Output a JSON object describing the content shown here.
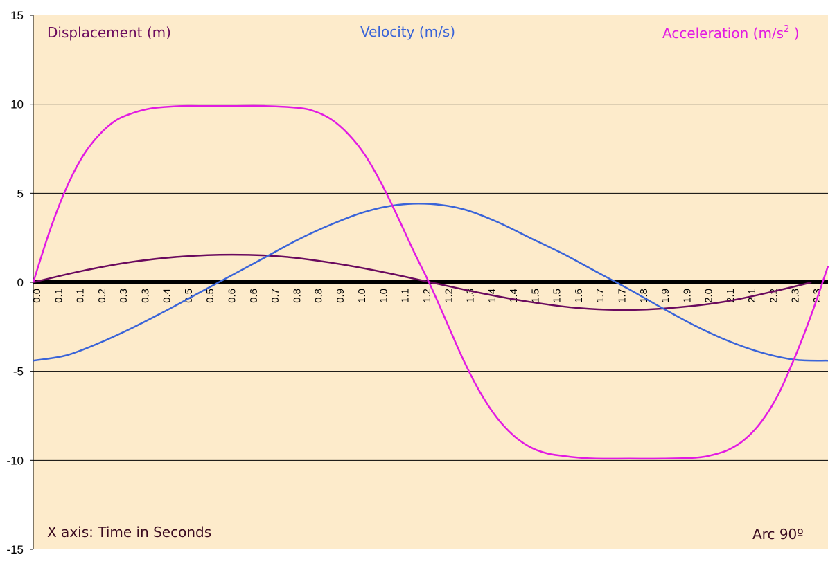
{
  "chart_data": {
    "type": "line",
    "xlabel": "X axis: Time in Seconds",
    "annotation": "Arc  90º",
    "ylim": [
      -15,
      15
    ],
    "yticks": [
      15,
      10,
      5,
      0,
      -5,
      -10,
      -15
    ],
    "xlim": [
      0,
      2.4
    ],
    "x_tick_labels": [
      "0.0",
      "0.1",
      "0.1",
      "0.2",
      "0.3",
      "0.3",
      "0.4",
      "0.5",
      "0.5",
      "0.6",
      "0.6",
      "0.7",
      "0.8",
      "0.8",
      "0.9",
      "1.0",
      "1.0",
      "1.1",
      "1.2",
      "1.2",
      "1.3",
      "1.4",
      "1.4",
      "1.5",
      "1.5",
      "1.6",
      "1.7",
      "1.7",
      "1.8",
      "1.9",
      "1.9",
      "2.0",
      "2.1",
      "2.1",
      "2.2",
      "2.3",
      "2.3"
    ],
    "colors": {
      "background": "#fdebcb",
      "grid": "#000000",
      "displacement": "#6a0a5e",
      "velocity": "#3a64d8",
      "acceleration": "#e21ae2"
    },
    "series": [
      {
        "name": "Displacement (m)",
        "x": [
          0.0,
          0.15,
          0.3,
          0.45,
          0.6,
          0.75,
          0.9,
          1.05,
          1.2,
          1.35,
          1.5,
          1.65,
          1.8,
          1.95,
          2.1,
          2.25,
          2.35
        ],
        "y": [
          0.0,
          0.65,
          1.15,
          1.45,
          1.55,
          1.45,
          1.1,
          0.6,
          0.0,
          -0.6,
          -1.1,
          -1.45,
          -1.55,
          -1.4,
          -1.05,
          -0.45,
          0.0
        ]
      },
      {
        "name": "Velocity (m/s)",
        "x": [
          0.0,
          0.1,
          0.2,
          0.3,
          0.4,
          0.5,
          0.6,
          0.7,
          0.8,
          0.9,
          1.0,
          1.1,
          1.2,
          1.3,
          1.4,
          1.5,
          1.6,
          1.7,
          1.8,
          1.9,
          2.0,
          2.1,
          2.2,
          2.3,
          2.4
        ],
        "y": [
          -4.4,
          -4.1,
          -3.4,
          -2.55,
          -1.6,
          -0.6,
          0.4,
          1.4,
          2.4,
          3.25,
          3.95,
          4.35,
          4.4,
          4.1,
          3.4,
          2.5,
          1.6,
          0.6,
          -0.4,
          -1.45,
          -2.45,
          -3.3,
          -3.95,
          -4.35,
          -4.4
        ]
      },
      {
        "name": "Acceleration (m/s",
        "name_sup": "2",
        "name_end": " )",
        "x": [
          0.0,
          0.05,
          0.1,
          0.15,
          0.2,
          0.25,
          0.3,
          0.35,
          0.4,
          0.45,
          0.5,
          0.6,
          0.7,
          0.8,
          0.85,
          0.9,
          0.95,
          1.0,
          1.05,
          1.1,
          1.15,
          1.2,
          1.25,
          1.3,
          1.35,
          1.4,
          1.45,
          1.5,
          1.55,
          1.6,
          1.65,
          1.7,
          1.8,
          1.9,
          2.0,
          2.05,
          2.1,
          2.15,
          2.2,
          2.25,
          2.3,
          2.35,
          2.4
        ],
        "y": [
          0.0,
          2.9,
          5.3,
          7.1,
          8.3,
          9.1,
          9.5,
          9.75,
          9.85,
          9.9,
          9.9,
          9.9,
          9.9,
          9.8,
          9.6,
          9.15,
          8.35,
          7.2,
          5.6,
          3.7,
          1.7,
          -0.2,
          -2.3,
          -4.4,
          -6.2,
          -7.6,
          -8.6,
          -9.25,
          -9.6,
          -9.75,
          -9.85,
          -9.9,
          -9.9,
          -9.9,
          -9.85,
          -9.7,
          -9.4,
          -8.8,
          -7.8,
          -6.3,
          -4.2,
          -1.8,
          0.9
        ]
      }
    ]
  }
}
